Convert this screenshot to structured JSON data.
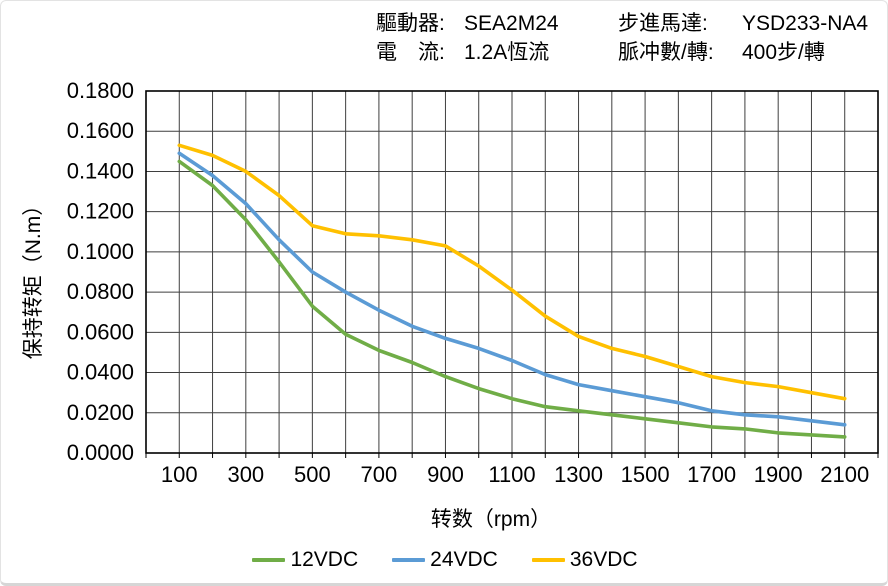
{
  "header": {
    "left": [
      {
        "label": "驅動器:",
        "value": "SEA2M24"
      },
      {
        "label": "電　流:",
        "value": "1.2A恆流"
      }
    ],
    "right": [
      {
        "label": "步進馬達:",
        "value": "YSD233-NA4"
      },
      {
        "label": "脈冲數/轉:",
        "value": "400步/轉"
      }
    ]
  },
  "chart_data": {
    "type": "line",
    "title": "",
    "xlabel": "转数（rpm）",
    "ylabel": "保持转矩（N.m）",
    "xlim": [
      0,
      2200
    ],
    "ylim": [
      0,
      0.18
    ],
    "grid": true,
    "legend_position": "bottom",
    "grid_color": "#3f3f3f",
    "axis_color": "#000000",
    "x": [
      100,
      200,
      300,
      400,
      500,
      600,
      700,
      800,
      900,
      1000,
      1100,
      1200,
      1300,
      1400,
      1500,
      1600,
      1700,
      1800,
      1900,
      2000,
      2100
    ],
    "x_tick_labels": [
      "100",
      "300",
      "500",
      "700",
      "900",
      "1100",
      "1300",
      "1500",
      "1700",
      "1900",
      "2100"
    ],
    "y_tick_labels": [
      "0.0000",
      "0.0200",
      "0.0400",
      "0.0600",
      "0.0800",
      "0.1000",
      "0.1200",
      "0.1400",
      "0.1600",
      "0.1800"
    ],
    "series": [
      {
        "name": "12VDC",
        "color": "#70AD47",
        "values": [
          0.145,
          0.133,
          0.116,
          0.095,
          0.073,
          0.059,
          0.051,
          0.045,
          0.038,
          0.032,
          0.027,
          0.023,
          0.021,
          0.019,
          0.017,
          0.015,
          0.013,
          0.012,
          0.01,
          0.009,
          0.008
        ]
      },
      {
        "name": "24VDC",
        "color": "#5B9BD5",
        "values": [
          0.149,
          0.138,
          0.124,
          0.106,
          0.09,
          0.08,
          0.071,
          0.063,
          0.057,
          0.052,
          0.046,
          0.039,
          0.034,
          0.031,
          0.028,
          0.025,
          0.021,
          0.019,
          0.018,
          0.016,
          0.014
        ]
      },
      {
        "name": "36VDC",
        "color": "#FFC000",
        "values": [
          0.153,
          0.148,
          0.14,
          0.128,
          0.113,
          0.109,
          0.108,
          0.106,
          0.103,
          0.093,
          0.081,
          0.068,
          0.058,
          0.052,
          0.048,
          0.043,
          0.038,
          0.035,
          0.033,
          0.03,
          0.027
        ]
      }
    ]
  }
}
